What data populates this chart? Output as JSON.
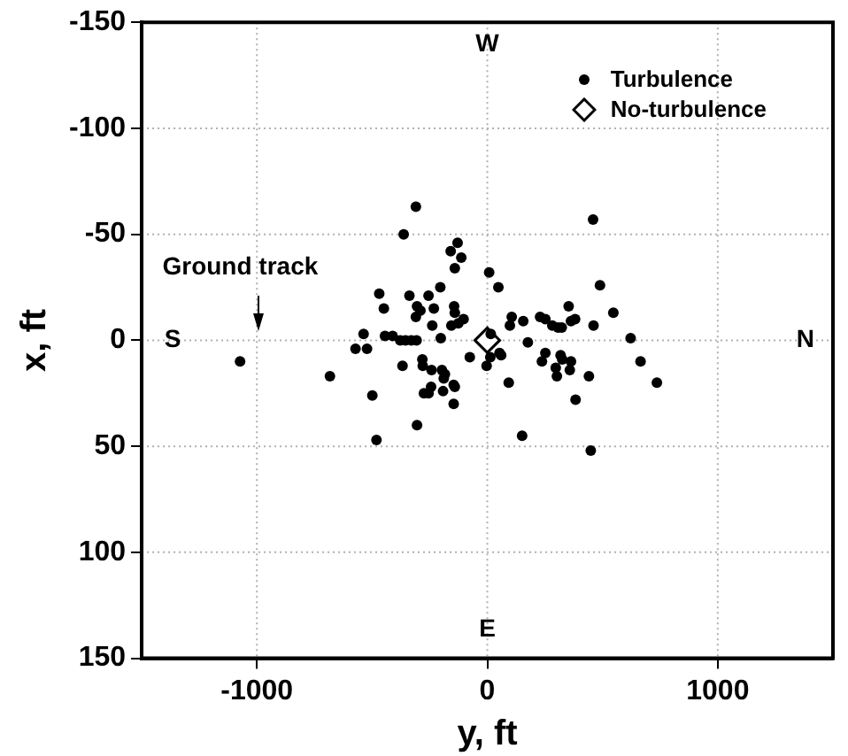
{
  "chart_data": {
    "type": "scatter",
    "xlabel": "y, ft",
    "ylabel": "x, ft",
    "xlim": [
      -1500,
      1500
    ],
    "xticks": [
      -1000,
      0,
      1000
    ],
    "ylim": [
      150,
      -150
    ],
    "yticks": [
      -150,
      -100,
      -50,
      0,
      50,
      100,
      150
    ],
    "grid": true,
    "legend": "top right",
    "annotations": [
      "W",
      "E",
      "S",
      "N",
      "Ground track"
    ],
    "series": [
      {
        "name": "Turbulence",
        "color": "#000000",
        "marker": "circle",
        "x": [
          -310,
          459,
          -363,
          -129,
          -159,
          -113,
          -141,
          8,
          48,
          -469,
          -338,
          -255,
          -204,
          489,
          -449,
          -305,
          -290,
          -232,
          -144,
          -310,
          -239,
          -141,
          -156,
          -103,
          -126,
          106,
          98,
          156,
          229,
          252,
          282,
          307,
          323,
          353,
          363,
          381,
          461,
          547,
          -537,
          -444,
          -411,
          -378,
          -355,
          -330,
          -307,
          -202,
          -572,
          -522,
          622,
          665,
          736,
          -76,
          15,
          -3,
          13,
          53,
          60,
          176,
          252,
          237,
          318,
          325,
          363,
          297,
          358,
          302,
          441,
          -683,
          -368,
          -282,
          -280,
          -242,
          -197,
          -184,
          -189,
          -146,
          -141,
          -244,
          -275,
          -255,
          -192,
          -146,
          -499,
          93,
          383,
          -305,
          -481,
          151,
          449,
          -1073
        ],
        "values": [
          -63,
          -57,
          -50,
          -46,
          -42,
          -39,
          -34,
          -32,
          -25,
          -22,
          -21,
          -21,
          -25,
          -26,
          -15,
          -16,
          -14,
          -15,
          -16,
          -11,
          -7,
          -13,
          -7,
          -10,
          -8,
          -11,
          -7,
          -9,
          -11,
          -10,
          -7,
          -6,
          -6,
          -16,
          -9,
          -10,
          -7,
          -13,
          -3,
          -2,
          -2,
          0,
          0,
          0,
          0,
          -1,
          4,
          4,
          -1,
          10,
          20,
          8,
          -3,
          12,
          8,
          6,
          7,
          1,
          6,
          10,
          7,
          9,
          10,
          13,
          14,
          17,
          17,
          17,
          12,
          9,
          12,
          14,
          14,
          16,
          18,
          21,
          22,
          22,
          25,
          25,
          24,
          30,
          26,
          20,
          28,
          40,
          47,
          45,
          52,
          10
        ]
      },
      {
        "name": "No-turbulence",
        "color": "#000000",
        "marker": "diamond",
        "x": [
          0
        ],
        "values": [
          0
        ]
      }
    ]
  }
}
